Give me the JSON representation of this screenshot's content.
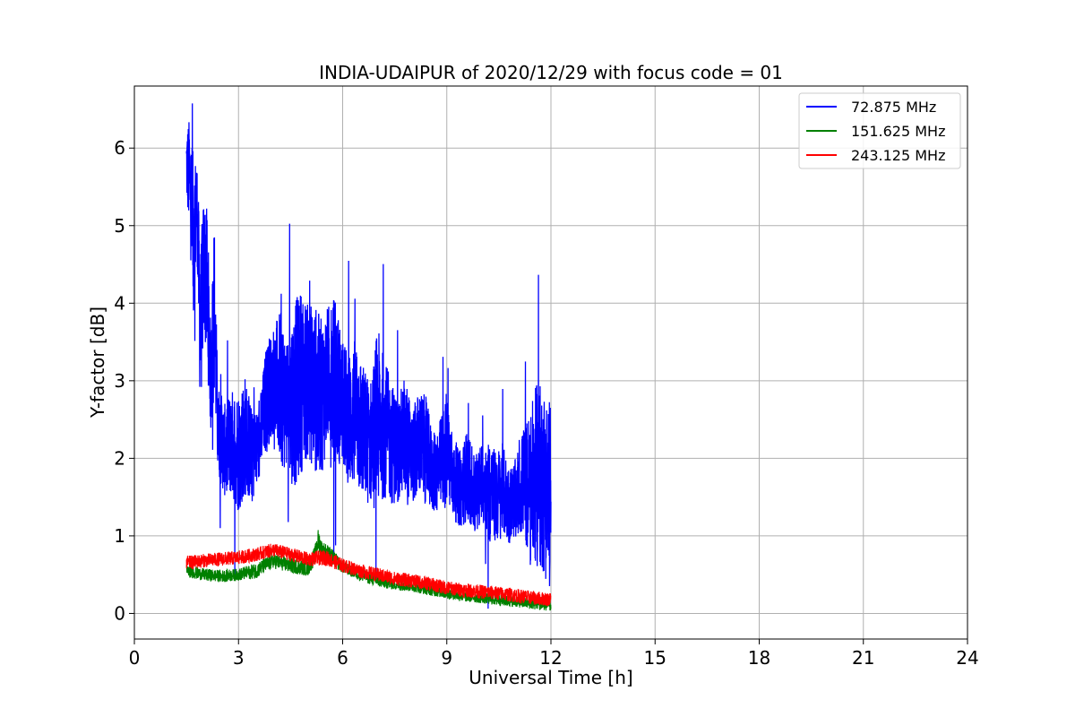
{
  "chart_data": {
    "type": "line",
    "title": "INDIA-UDAIPUR of 2020/12/29 with focus code = 01",
    "xlabel": "Universal Time [h]",
    "ylabel": "Y-factor [dB]",
    "xlim": [
      0,
      24
    ],
    "ylim": [
      -0.33,
      6.8
    ],
    "xticks": [
      0,
      3,
      6,
      9,
      12,
      15,
      18,
      21,
      24
    ],
    "yticks": [
      0,
      1,
      2,
      3,
      4,
      5,
      6
    ],
    "grid": true,
    "legend_position": "top-right",
    "series": [
      {
        "name": " 72.875 MHz",
        "color": "#0000ff",
        "x": [
          1.5,
          1.6,
          1.7,
          1.8,
          1.9,
          2.0,
          2.1,
          2.2,
          2.3,
          2.4,
          2.6,
          2.8,
          3.0,
          3.2,
          3.4,
          3.6,
          3.8,
          4.0,
          4.2,
          4.4,
          4.6,
          4.8,
          5.0,
          5.2,
          5.4,
          5.6,
          5.8,
          6.0,
          6.2,
          6.4,
          6.6,
          6.8,
          7.0,
          7.2,
          7.4,
          7.6,
          7.8,
          8.0,
          8.2,
          8.4,
          8.6,
          8.8,
          9.0,
          9.2,
          9.4,
          9.6,
          9.8,
          10.0,
          10.2,
          10.4,
          10.6,
          10.8,
          11.0,
          11.2,
          11.4,
          11.6,
          11.8,
          12.0
        ],
        "mid": [
          5.8,
          5.6,
          4.8,
          5.3,
          3.6,
          4.5,
          4.2,
          3.0,
          4.0,
          2.4,
          2.1,
          2.2,
          2.1,
          2.3,
          2.0,
          2.2,
          2.8,
          3.0,
          2.9,
          2.7,
          2.8,
          3.0,
          3.0,
          2.9,
          2.8,
          3.1,
          3.0,
          2.7,
          2.5,
          2.6,
          2.3,
          2.2,
          2.5,
          2.4,
          2.2,
          2.1,
          2.3,
          2.0,
          2.2,
          2.1,
          1.8,
          1.9,
          2.1,
          1.7,
          1.6,
          1.8,
          1.5,
          1.7,
          1.6,
          1.5,
          1.6,
          1.4,
          1.5,
          1.7,
          1.6,
          1.8,
          1.7,
          1.5
        ],
        "amp": [
          0.5,
          0.8,
          1.1,
          0.6,
          1.1,
          0.9,
          1.0,
          0.7,
          1.2,
          0.6,
          0.6,
          0.7,
          0.8,
          0.8,
          0.6,
          0.5,
          0.7,
          0.7,
          1.0,
          0.9,
          1.2,
          1.2,
          1.0,
          1.1,
          1.0,
          0.9,
          1.1,
          0.8,
          0.9,
          1.0,
          0.9,
          0.8,
          1.2,
          0.9,
          0.8,
          0.7,
          0.8,
          0.6,
          0.7,
          0.7,
          0.5,
          0.6,
          0.8,
          0.5,
          0.5,
          0.6,
          0.5,
          0.5,
          0.7,
          0.6,
          0.6,
          0.5,
          0.5,
          0.7,
          1.0,
          1.2,
          1.2,
          1.3
        ]
      },
      {
        "name": "151.625 MHz",
        "color": "#008000",
        "x": [
          1.5,
          2.0,
          2.5,
          3.0,
          3.5,
          4.0,
          4.5,
          5.0,
          5.2,
          5.3,
          5.4,
          5.6,
          5.8,
          6.0,
          6.5,
          7.0,
          7.5,
          8.0,
          8.5,
          9.0,
          9.5,
          10.0,
          10.5,
          11.0,
          11.5,
          12.0
        ],
        "mid": [
          0.55,
          0.5,
          0.48,
          0.5,
          0.55,
          0.68,
          0.62,
          0.58,
          0.75,
          0.95,
          0.82,
          0.78,
          0.68,
          0.6,
          0.5,
          0.42,
          0.38,
          0.35,
          0.3,
          0.26,
          0.22,
          0.2,
          0.17,
          0.15,
          0.12,
          0.1
        ],
        "amp": [
          0.08,
          0.08,
          0.08,
          0.08,
          0.1,
          0.1,
          0.1,
          0.1,
          0.12,
          0.15,
          0.12,
          0.1,
          0.1,
          0.08,
          0.08,
          0.08,
          0.08,
          0.07,
          0.07,
          0.07,
          0.07,
          0.07,
          0.07,
          0.07,
          0.07,
          0.07
        ]
      },
      {
        "name": "243.125 MHz",
        "color": "#ff0000",
        "x": [
          1.5,
          2.0,
          2.5,
          3.0,
          3.5,
          4.0,
          4.5,
          5.0,
          5.5,
          6.0,
          6.5,
          7.0,
          7.5,
          8.0,
          8.5,
          9.0,
          9.5,
          10.0,
          10.5,
          11.0,
          11.5,
          12.0
        ],
        "mid": [
          0.65,
          0.68,
          0.7,
          0.72,
          0.76,
          0.82,
          0.76,
          0.7,
          0.72,
          0.62,
          0.55,
          0.5,
          0.45,
          0.42,
          0.38,
          0.33,
          0.3,
          0.28,
          0.26,
          0.23,
          0.2,
          0.18
        ],
        "amp": [
          0.09,
          0.09,
          0.09,
          0.09,
          0.09,
          0.09,
          0.09,
          0.09,
          0.1,
          0.09,
          0.09,
          0.09,
          0.09,
          0.09,
          0.09,
          0.09,
          0.09,
          0.09,
          0.09,
          0.09,
          0.09,
          0.09
        ]
      }
    ]
  }
}
